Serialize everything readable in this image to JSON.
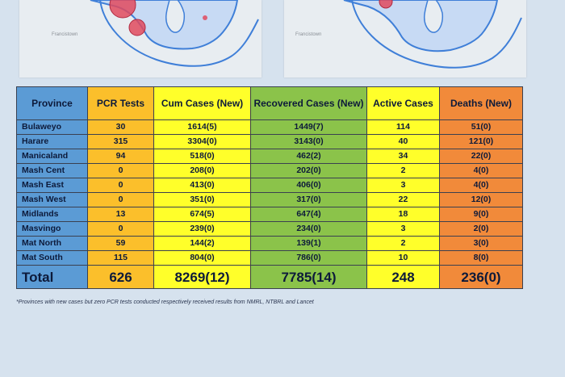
{
  "maps": {
    "left_label": "Francistown",
    "right_label": "Francistown"
  },
  "table": {
    "headers": {
      "province": "Province",
      "pcr": "PCR Tests",
      "cum": "Cum Cases (New)",
      "recovered": "Recovered Cases (New)",
      "active": "Active Cases",
      "deaths": "Deaths (New)"
    },
    "rows": [
      {
        "province": "Bulaweyo",
        "pcr": "30",
        "cum": "1614(5)",
        "recovered": "1449(7)",
        "active": "114",
        "deaths": "51(0)"
      },
      {
        "province": "Harare",
        "pcr": "315",
        "cum": "3304(0)",
        "recovered": "3143(0)",
        "active": "40",
        "deaths": "121(0)"
      },
      {
        "province": "Manicaland",
        "pcr": "94",
        "cum": "518(0)",
        "recovered": "462(2)",
        "active": "34",
        "deaths": "22(0)"
      },
      {
        "province": "Mash Cent",
        "pcr": "0",
        "cum": "208(0)",
        "recovered": "202(0)",
        "active": "2",
        "deaths": "4(0)"
      },
      {
        "province": "Mash East",
        "pcr": "0",
        "cum": "413(0)",
        "recovered": "406(0)",
        "active": "3",
        "deaths": "4(0)"
      },
      {
        "province": "Mash West",
        "pcr": "0",
        "cum": "351(0)",
        "recovered": "317(0)",
        "active": "22",
        "deaths": "12(0)"
      },
      {
        "province": "Midlands",
        "pcr": "13",
        "cum": "674(5)",
        "recovered": "647(4)",
        "active": "18",
        "deaths": "9(0)"
      },
      {
        "province": "Masvingo",
        "pcr": "0",
        "cum": "239(0)",
        "recovered": "234(0)",
        "active": "3",
        "deaths": "2(0)"
      },
      {
        "province": "Mat North",
        "pcr": "59",
        "cum": "144(2)",
        "recovered": "139(1)",
        "active": "2",
        "deaths": "3(0)"
      },
      {
        "province": "Mat South",
        "pcr": "115",
        "cum": "804(0)",
        "recovered": "786(0)",
        "active": "10",
        "deaths": "8(0)"
      }
    ],
    "total": {
      "province": "Total",
      "pcr": "626",
      "cum": "8269(12)",
      "recovered": "7785(14)",
      "active": "248",
      "deaths": "236(0)"
    }
  },
  "footnote": "*Provinces with new cases but zero PCR tests conducted respectively received results from NMRL, NTBRL and Lancet",
  "colors": {
    "province": "#5b9bd5",
    "pcr": "#fbbf2b",
    "cum": "#ffff2a",
    "recovered": "#8bc34a",
    "active": "#ffff2a",
    "deaths": "#f18a3a",
    "map_region": "#8fb7e8",
    "map_border": "#3f7fd8",
    "case_bubble": "#e04a5e"
  }
}
